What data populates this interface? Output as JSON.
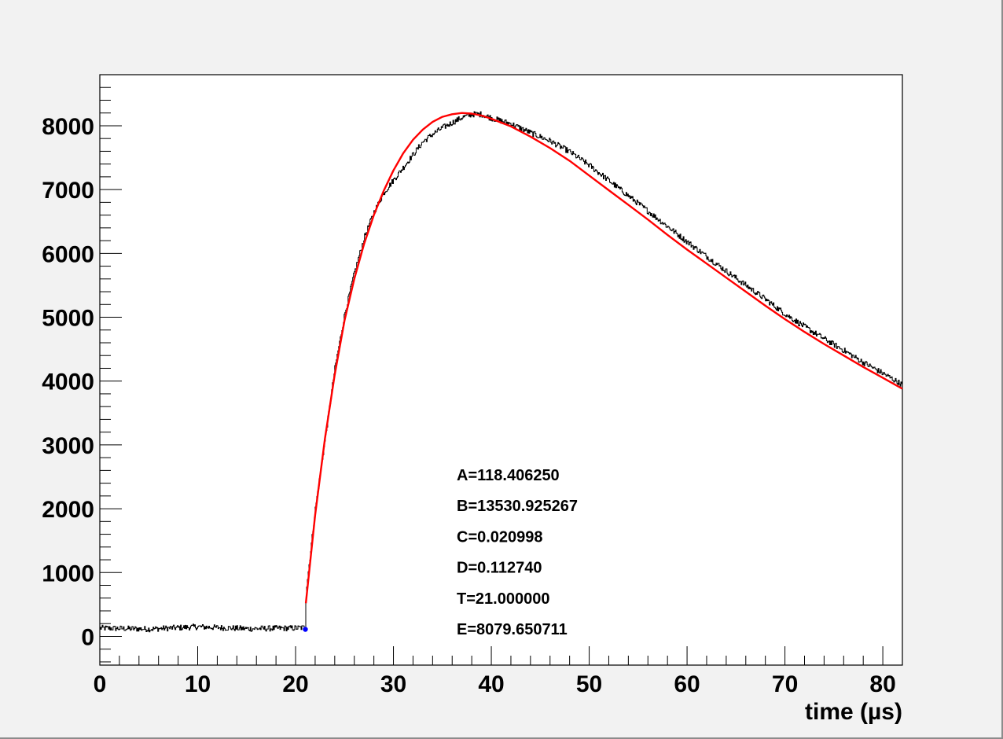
{
  "chart_data": {
    "type": "line",
    "title": "",
    "xlabel": "time (µs)",
    "ylabel": "",
    "xlim": [
      0,
      82
    ],
    "ylim": [
      -450,
      8800
    ],
    "x_major_ticks": [
      0,
      10,
      20,
      30,
      40,
      50,
      60,
      70,
      80
    ],
    "x_tick_labels": [
      "0",
      "10",
      "20",
      "30",
      "40",
      "50",
      "60",
      "70",
      "80"
    ],
    "y_major_ticks": [
      0,
      1000,
      2000,
      3000,
      4000,
      5000,
      6000,
      7000,
      8000
    ],
    "y_tick_labels": [
      "0",
      "1000",
      "2000",
      "3000",
      "4000",
      "5000",
      "6000",
      "7000",
      "8000"
    ],
    "grid": false,
    "series": [
      {
        "role": "data",
        "color": "#000000",
        "noise_amplitude": 45,
        "x": [
          0,
          5,
          10,
          15,
          20,
          21,
          21.05,
          22,
          23,
          24,
          25,
          26,
          27,
          28,
          29,
          30,
          31,
          32,
          33,
          34,
          35,
          36,
          37,
          38,
          39,
          40,
          42,
          44,
          46,
          48,
          50,
          52,
          54,
          56,
          58,
          60,
          62,
          64,
          66,
          68,
          70,
          72,
          74,
          76,
          78,
          80,
          82
        ],
        "values": [
          130,
          115,
          150,
          120,
          130,
          140,
          700,
          2000,
          3100,
          4200,
          5050,
          5700,
          6250,
          6650,
          6950,
          7150,
          7350,
          7550,
          7750,
          7870,
          7970,
          8050,
          8130,
          8180,
          8180,
          8120,
          8030,
          7890,
          7760,
          7590,
          7380,
          7140,
          6900,
          6660,
          6420,
          6180,
          5950,
          5720,
          5500,
          5280,
          5050,
          4850,
          4660,
          4480,
          4290,
          4120,
          3940
        ]
      },
      {
        "role": "fit",
        "color": "#ff0000",
        "x": [
          21.05,
          22,
          23,
          24,
          25,
          26,
          27,
          28,
          29,
          30,
          31,
          32,
          33,
          34,
          35,
          36,
          37,
          38,
          39,
          40,
          42,
          44,
          46,
          48,
          50,
          52,
          54,
          56,
          58,
          60,
          62,
          64,
          66,
          68,
          70,
          72,
          74,
          76,
          78,
          80,
          82
        ],
        "values": [
          520,
          1900,
          3100,
          4100,
          4950,
          5600,
          6150,
          6600,
          6980,
          7300,
          7570,
          7780,
          7940,
          8060,
          8140,
          8180,
          8200,
          8190,
          8160,
          8110,
          7990,
          7830,
          7650,
          7450,
          7220,
          6990,
          6760,
          6530,
          6290,
          6060,
          5840,
          5620,
          5400,
          5180,
          4970,
          4770,
          4580,
          4400,
          4220,
          4050,
          3880
        ]
      }
    ],
    "marker": {
      "x": 21,
      "y": 110,
      "color": "#0000ff"
    },
    "annotations": [
      "A=118.406250",
      "B=13530.925267",
      "C=0.020998",
      "D=0.112740",
      "T=21.000000",
      "E=8079.650711"
    ]
  }
}
